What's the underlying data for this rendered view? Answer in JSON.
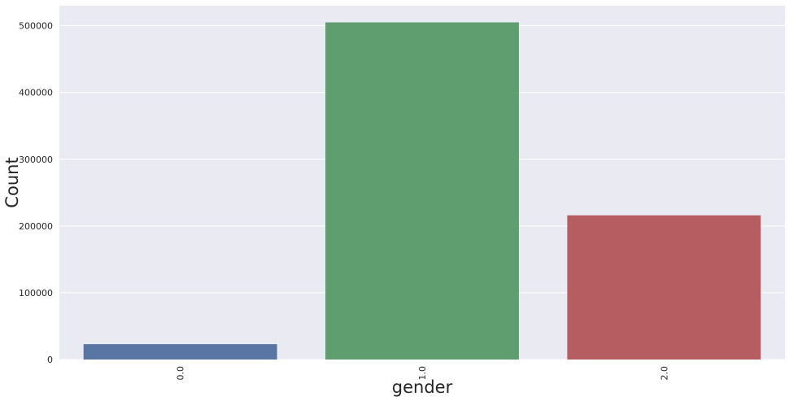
{
  "chart_data": {
    "type": "bar",
    "title": "",
    "xlabel": "gender",
    "ylabel": "Count",
    "categories": [
      "0.0",
      "1.0",
      "2.0"
    ],
    "values": [
      23000,
      505000,
      216000
    ],
    "ylim": [
      0,
      530000
    ],
    "yticks": [
      0,
      100000,
      200000,
      300000,
      400000,
      500000
    ],
    "ytick_labels": [
      "0",
      "100000",
      "200000",
      "300000",
      "400000",
      "500000"
    ],
    "grid": true,
    "legend": "none",
    "colors": {
      "background": "#EAEAF2",
      "grid": "#FFFFFF",
      "bars": [
        "#5975A4",
        "#5F9E6E",
        "#B55D60"
      ]
    }
  }
}
